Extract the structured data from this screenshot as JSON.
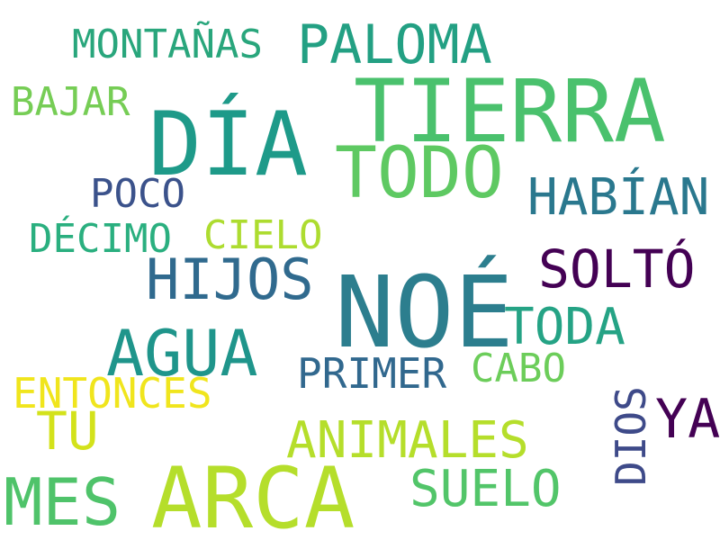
{
  "words": [
    {
      "text": "MONTAÑAS",
      "color": "#29a67c",
      "weight": 0.22
    },
    {
      "text": "PALOMA",
      "color": "#23a083",
      "weight": 0.34
    },
    {
      "text": "BAJAR",
      "color": "#76cd55",
      "weight": 0.22
    },
    {
      "text": "TIERRA",
      "color": "#4ac16d",
      "weight": 0.62
    },
    {
      "text": "DÍA",
      "color": "#1e9a89",
      "weight": 0.62
    },
    {
      "text": "TODO",
      "color": "#5ec962",
      "weight": 0.48
    },
    {
      "text": "POCO",
      "color": "#3b528b",
      "weight": 0.22
    },
    {
      "text": "HABÍAN",
      "color": "#2a788e",
      "weight": 0.3
    },
    {
      "text": "DÉCIMO",
      "color": "#2aaf7f",
      "weight": 0.22
    },
    {
      "text": "CIELO",
      "color": "#addc30",
      "weight": 0.22
    },
    {
      "text": "HIJOS",
      "color": "#306a8e",
      "weight": 0.35
    },
    {
      "text": "SOLTÓ",
      "color": "#440154",
      "weight": 0.3
    },
    {
      "text": "NOÉ",
      "color": "#2c7e8e",
      "weight": 0.72
    },
    {
      "text": "TODA",
      "color": "#25a385",
      "weight": 0.3
    },
    {
      "text": "AGUA",
      "color": "#1f958b",
      "weight": 0.4
    },
    {
      "text": "PRIMER",
      "color": "#31688e",
      "weight": 0.24
    },
    {
      "text": "CABO",
      "color": "#6ccd5a",
      "weight": 0.22
    },
    {
      "text": "ENTONCES",
      "color": "#f0e51d",
      "weight": 0.24
    },
    {
      "text": "TU",
      "color": "#d3e21b",
      "weight": 0.3
    },
    {
      "text": "ANIMALES",
      "color": "#b5de2b",
      "weight": 0.3
    },
    {
      "text": "DIOS",
      "color": "#3e4a89",
      "weight": 0.24
    },
    {
      "text": "YA",
      "color": "#440154",
      "weight": 0.32
    },
    {
      "text": "MES",
      "color": "#4fc36a",
      "weight": 0.4
    },
    {
      "text": "ARCA",
      "color": "#b5de2b",
      "weight": 0.56
    },
    {
      "text": "SUELO",
      "color": "#52c569",
      "weight": 0.3
    }
  ]
}
